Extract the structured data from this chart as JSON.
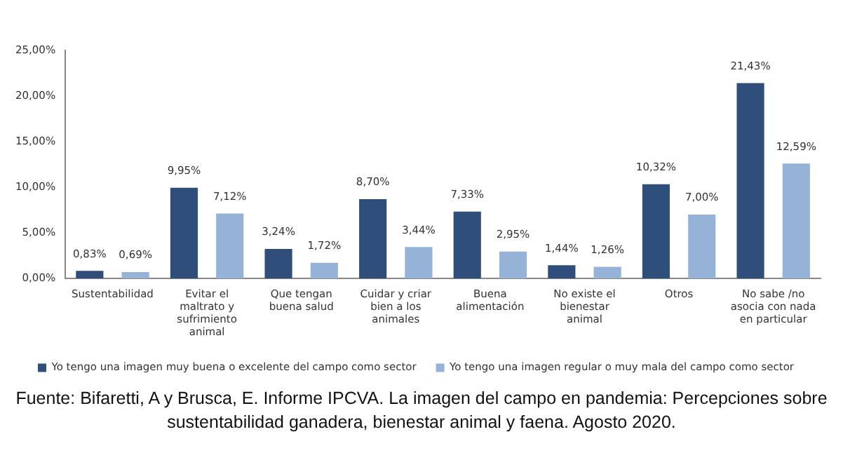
{
  "chart_data": {
    "type": "bar",
    "categories": [
      "Sustentabilidad",
      "Evitar el maltrato y sufrimiento animal",
      "Que tengan buena salud",
      "Cuidar y criar bien a los animales",
      "Buena alimentación",
      "No existe el bienestar animal",
      "Otros",
      "No sabe /no asocia con nada en particular"
    ],
    "series": [
      {
        "name": "Yo tengo una imagen muy buena o excelente del campo como sector",
        "color": "#2f4f7a",
        "values": [
          0.83,
          9.95,
          3.24,
          8.7,
          7.33,
          1.44,
          10.32,
          21.43
        ],
        "value_labels": [
          "0,83%",
          "9,95%",
          "3,24%",
          "8,70%",
          "7,33%",
          "1,44%",
          "10,32%",
          "21,43%"
        ]
      },
      {
        "name": "Yo tengo una imagen regular o muy mala del campo como sector",
        "color": "#95b3d7",
        "values": [
          0.69,
          7.12,
          1.72,
          3.44,
          2.95,
          1.26,
          7.0,
          12.59
        ],
        "value_labels": [
          "0,69%",
          "7,12%",
          "1,72%",
          "3,44%",
          "2,95%",
          "1,26%",
          "7,00%",
          "12,59%"
        ]
      }
    ],
    "ylim": [
      0,
      25
    ],
    "yticks": [
      {
        "value": 0,
        "label": "0,00%"
      },
      {
        "value": 5,
        "label": "5,00%"
      },
      {
        "value": 10,
        "label": "10,00%"
      },
      {
        "value": 15,
        "label": "15,00%"
      },
      {
        "value": 20,
        "label": "20,00%"
      },
      {
        "value": 25,
        "label": "25,00%"
      }
    ],
    "grid": false,
    "legend": "bottom",
    "annotations": [
      "Fuente: Bifaretti, A y Brusca, E. Informe IPCVA. La imagen del campo en pandemia: Percepciones sobre sustentabilidad ganadera, bienestar animal y faena. Agosto 2020."
    ]
  }
}
